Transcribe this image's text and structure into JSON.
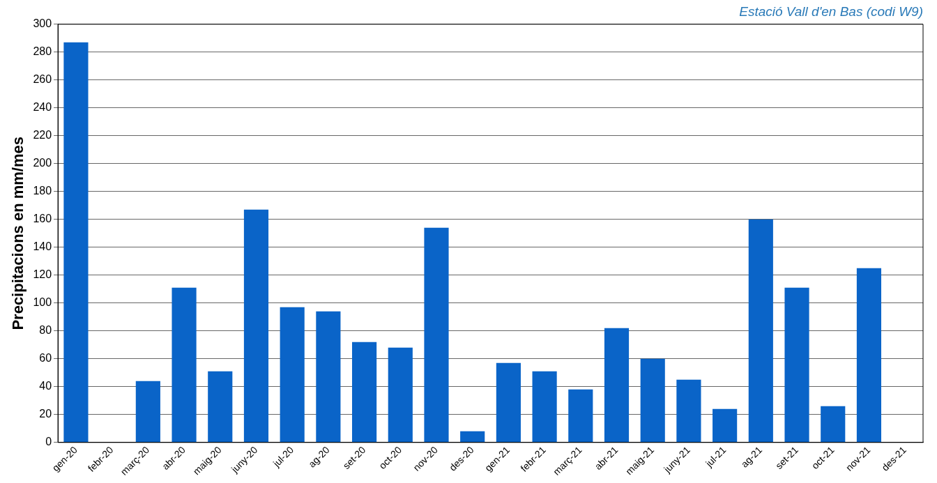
{
  "chart_data": {
    "type": "bar",
    "title": "Estació Vall d'en Bas (codi W9)",
    "ylabel": "Precipitacions en mm/mes",
    "categories": [
      "gen-20",
      "febr-20",
      "març-20",
      "abr-20",
      "maig-20",
      "juny-20",
      "jul-20",
      "ag-20",
      "set-20",
      "oct-20",
      "nov-20",
      "des-20",
      "gen-21",
      "febr-21",
      "març-21",
      "abr-21",
      "maig-21",
      "juny-21",
      "jul-21",
      "ag-21",
      "set-21",
      "oct-21",
      "nov-21",
      "des-21"
    ],
    "values": [
      287,
      null,
      44,
      111,
      51,
      167,
      97,
      94,
      72,
      68,
      154,
      8,
      57,
      51,
      38,
      82,
      60,
      45,
      24,
      160,
      111,
      26,
      125,
      null
    ],
    "color": "#0a64c8",
    "ylim": [
      0,
      300
    ],
    "yticks": [
      0,
      20,
      40,
      60,
      80,
      100,
      120,
      140,
      160,
      180,
      200,
      220,
      240,
      260,
      280,
      300
    ],
    "grid": "y",
    "legend": false
  }
}
